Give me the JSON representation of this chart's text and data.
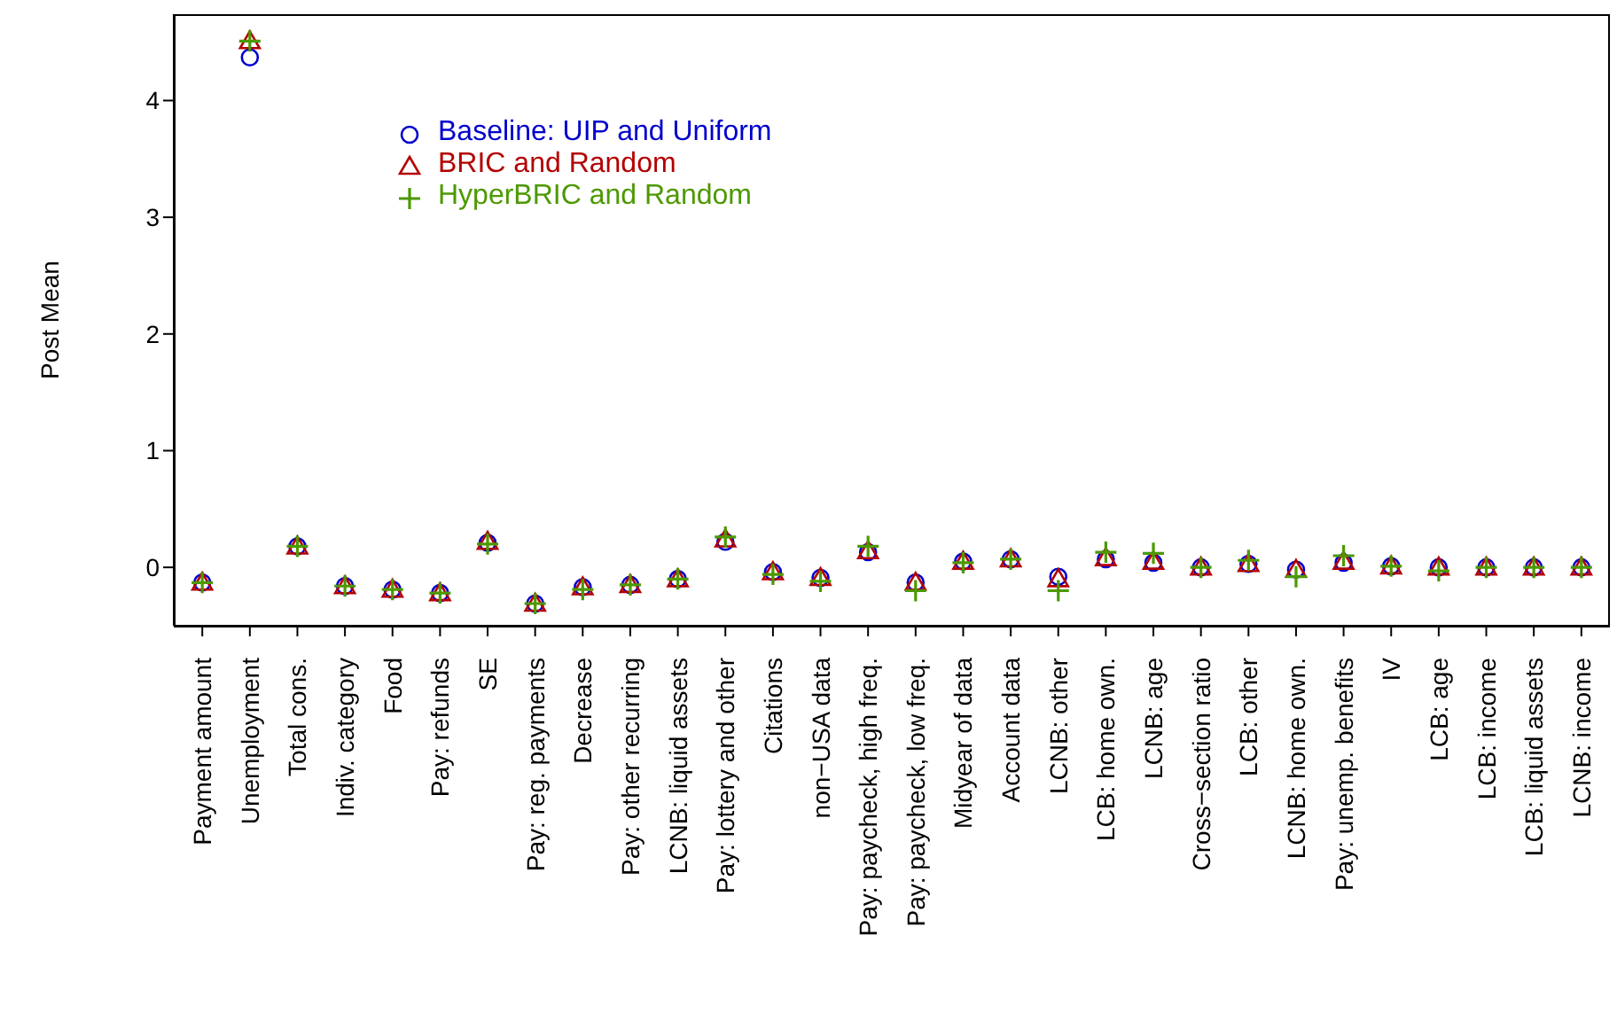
{
  "chart_data": {
    "type": "scatter",
    "ylabel": "Post Mean",
    "legend": "top left",
    "grid": false,
    "categories": [
      "Payment amount",
      "Unemployment",
      "Total cons.",
      "Indiv. category",
      "Food",
      "Pay: refunds",
      "SE",
      "Pay: reg. payments",
      "Decrease",
      "Pay: other recurring",
      "LCNB: liquid assets",
      "Pay: lottery and other",
      "Citations",
      "non−USA data",
      "Pay: paycheck, high freq.",
      "Pay: paycheck, low freq.",
      "Midyear of data",
      "Account data",
      "LCNB: other",
      "LCB: home own.",
      "LCNB: age",
      "Cross−section ratio",
      "LCB: other",
      "LCNB: home own.",
      "Pay: unemp. benefits",
      "IV",
      "LCB: age",
      "LCB: income",
      "LCB: liquid assets",
      "LCNB: income"
    ],
    "ylim": [
      -0.5,
      4.74
    ],
    "yticks": [
      0,
      1,
      2,
      3,
      4
    ],
    "series": [
      {
        "name": "Baseline: UIP and Uniform",
        "color": "#0000cc",
        "marker": "circle",
        "values": [
          -0.13,
          4.37,
          0.18,
          -0.16,
          -0.19,
          -0.22,
          0.21,
          -0.31,
          -0.17,
          -0.15,
          -0.1,
          0.22,
          -0.04,
          -0.09,
          0.13,
          -0.13,
          0.05,
          0.07,
          -0.08,
          0.07,
          0.04,
          0.0,
          0.03,
          -0.02,
          0.04,
          0.01,
          0.0,
          0.0,
          0.0,
          0.0
        ]
      },
      {
        "name": "BRIC and Random",
        "color": "#b30000",
        "marker": "triangle",
        "values": [
          -0.13,
          4.51,
          0.18,
          -0.16,
          -0.19,
          -0.22,
          0.22,
          -0.31,
          -0.17,
          -0.15,
          -0.1,
          0.24,
          -0.04,
          -0.09,
          0.14,
          -0.13,
          0.05,
          0.07,
          -0.1,
          0.08,
          0.05,
          0.0,
          0.03,
          -0.02,
          0.05,
          0.01,
          0.0,
          0.0,
          0.0,
          0.0
        ]
      },
      {
        "name": "HyperBRIC and Random",
        "color": "#4c9900",
        "marker": "cross",
        "values": [
          -0.13,
          4.51,
          0.18,
          -0.16,
          -0.19,
          -0.22,
          0.2,
          -0.31,
          -0.19,
          -0.15,
          -0.1,
          0.26,
          -0.06,
          -0.12,
          0.18,
          -0.2,
          0.04,
          0.07,
          -0.2,
          0.13,
          0.12,
          0.0,
          0.06,
          -0.08,
          0.1,
          0.01,
          -0.03,
          0.0,
          0.0,
          0.0
        ]
      }
    ]
  }
}
